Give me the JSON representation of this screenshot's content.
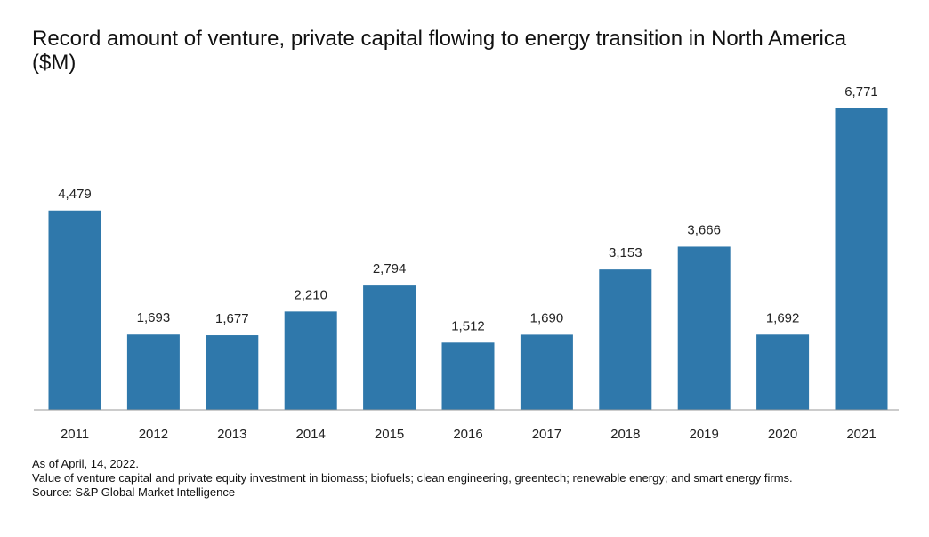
{
  "chart_data": {
    "type": "bar",
    "title": "Record amount of venture, private capital flowing to energy transition in North America ($M)",
    "categories": [
      "2011",
      "2012",
      "2013",
      "2014",
      "2015",
      "2016",
      "2017",
      "2018",
      "2019",
      "2020",
      "2021"
    ],
    "values": [
      4479,
      1693,
      1677,
      2210,
      2794,
      1512,
      1690,
      3153,
      3666,
      1692,
      6771
    ],
    "value_labels": [
      "4,479",
      "1,693",
      "1,677",
      "2,210",
      "2,794",
      "1,512",
      "1,690",
      "3,153",
      "3,666",
      "1,692",
      "6,771"
    ],
    "xlabel": "",
    "ylabel": "",
    "ylim": [
      0,
      7000
    ],
    "grid": false,
    "legend": "none",
    "bar_color": "#2f78ab"
  },
  "notes": {
    "date": "As of April, 14, 2022.",
    "description": "Value of venture capital and private equity investment in biomass; biofuels; clean engineering, greentech; renewable energy; and smart energy firms.",
    "source": "Source: S&P Global Market Intelligence"
  }
}
